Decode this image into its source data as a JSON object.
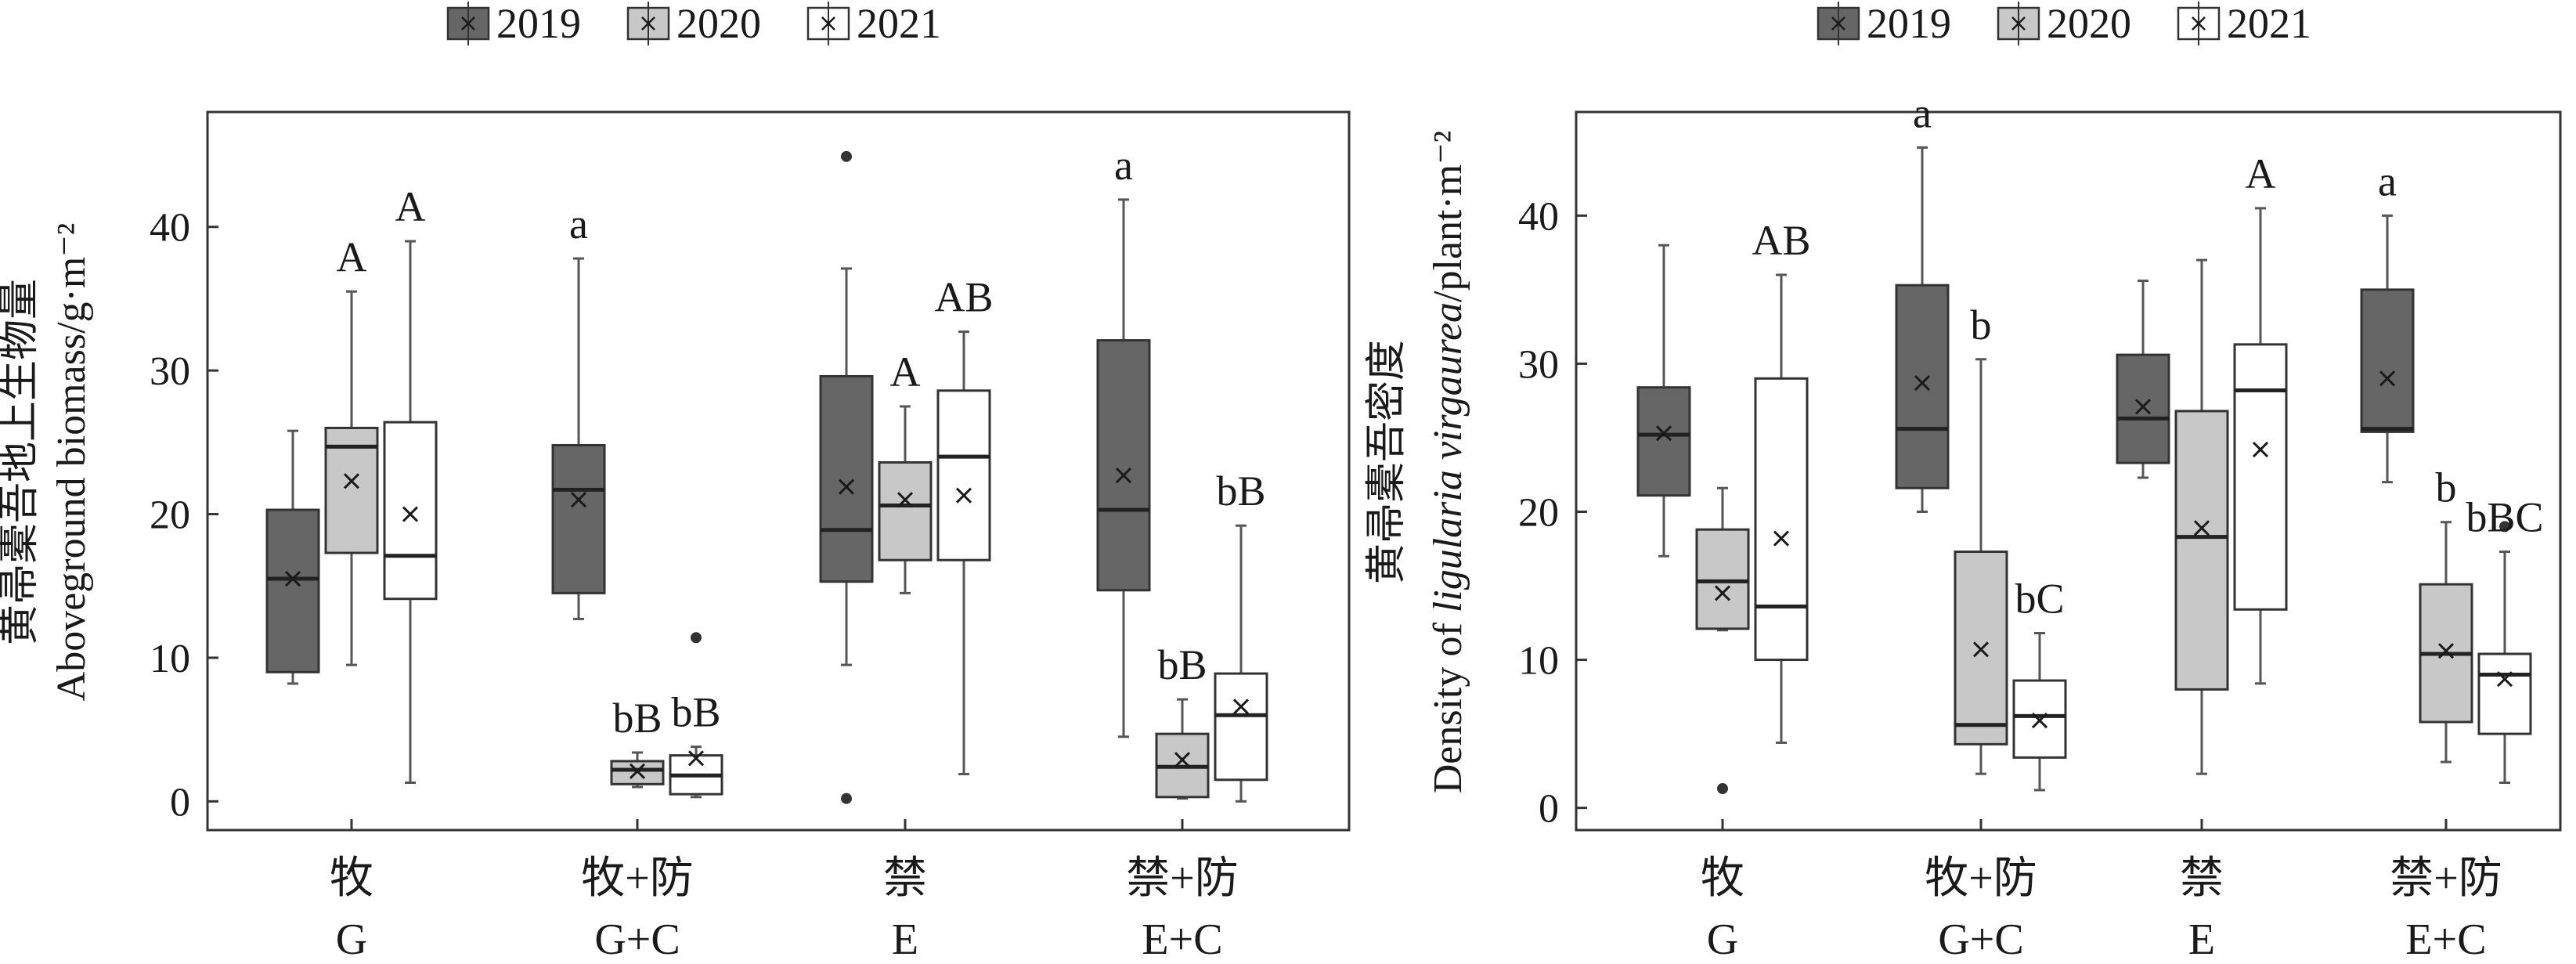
{
  "chart_data": [
    {
      "type": "box",
      "ylabel_zh": "黄帚橐吾地上生物量",
      "ylabel_en": "Aboveground biomass/g·m⁻²",
      "ylim": [
        -2,
        48
      ],
      "yticks": [
        0,
        10,
        20,
        30,
        40
      ],
      "categories": [
        {
          "zh": "牧",
          "en": "G"
        },
        {
          "zh": "牧+防",
          "en": "G+C"
        },
        {
          "zh": "禁",
          "en": "E"
        },
        {
          "zh": "禁+防",
          "en": "E+C"
        }
      ],
      "legend": [
        "2019",
        "2020",
        "2021"
      ],
      "series_colors": [
        "#666666",
        "#c8c8c8",
        "#ffffff"
      ],
      "boxes": [
        {
          "cat": 0,
          "series": 0,
          "wlo": 8.2,
          "q1": 9,
          "med": 15.5,
          "q3": 20.3,
          "whi": 25.8,
          "mean": 15.5,
          "outliers": [],
          "label": ""
        },
        {
          "cat": 0,
          "series": 1,
          "wlo": 9.5,
          "q1": 17.3,
          "med": 24.7,
          "q3": 26,
          "whi": 35.5,
          "mean": 22.3,
          "outliers": [],
          "label": "A"
        },
        {
          "cat": 0,
          "series": 2,
          "wlo": 1.3,
          "q1": 14.1,
          "med": 17.1,
          "q3": 26.4,
          "whi": 39,
          "mean": 20,
          "outliers": [],
          "label": "A"
        },
        {
          "cat": 1,
          "series": 0,
          "wlo": 12.7,
          "q1": 14.5,
          "med": 21.7,
          "q3": 24.8,
          "whi": 37.8,
          "mean": 21,
          "outliers": [],
          "label": "a"
        },
        {
          "cat": 1,
          "series": 1,
          "wlo": 1,
          "q1": 1.2,
          "med": 2.2,
          "q3": 2.8,
          "whi": 3.4,
          "mean": 2.1,
          "outliers": [],
          "label": "bB"
        },
        {
          "cat": 1,
          "series": 2,
          "wlo": 0.3,
          "q1": 0.5,
          "med": 1.8,
          "q3": 3.2,
          "whi": 3.8,
          "mean": 3,
          "outliers": [
            11.4
          ],
          "label": "bB"
        },
        {
          "cat": 2,
          "series": 0,
          "wlo": 9.5,
          "q1": 15.3,
          "med": 18.9,
          "q3": 29.6,
          "whi": 37.1,
          "mean": 21.9,
          "outliers": [
            44.9,
            0.2
          ],
          "label": ""
        },
        {
          "cat": 2,
          "series": 1,
          "wlo": 14.5,
          "q1": 16.8,
          "med": 20.6,
          "q3": 23.6,
          "whi": 27.5,
          "mean": 21,
          "outliers": [],
          "label": "A"
        },
        {
          "cat": 2,
          "series": 2,
          "wlo": 1.9,
          "q1": 16.8,
          "med": 24,
          "q3": 28.6,
          "whi": 32.7,
          "mean": 21.3,
          "outliers": [],
          "label": "AB"
        },
        {
          "cat": 3,
          "series": 0,
          "wlo": 4.5,
          "q1": 14.7,
          "med": 20.3,
          "q3": 32.1,
          "whi": 41.9,
          "mean": 22.7,
          "outliers": [],
          "label": "a"
        },
        {
          "cat": 3,
          "series": 1,
          "wlo": 0.2,
          "q1": 0.3,
          "med": 2.4,
          "q3": 4.7,
          "whi": 7.1,
          "mean": 2.9,
          "outliers": [],
          "label": "bB"
        },
        {
          "cat": 3,
          "series": 2,
          "wlo": 0,
          "q1": 1.5,
          "med": 6,
          "q3": 8.9,
          "whi": 19.2,
          "mean": 6.6,
          "outliers": [],
          "label": "bB"
        }
      ]
    },
    {
      "type": "box",
      "ylabel_zh": "黄帚橐吾密度",
      "ylabel_en_prefix": "Density of ",
      "ylabel_en_italic": "ligularia virgaurea",
      "ylabel_en_suffix": "/plant·m⁻²",
      "ylim": [
        -1.5,
        47
      ],
      "yticks": [
        0,
        10,
        20,
        30,
        40
      ],
      "categories": [
        {
          "zh": "牧",
          "en": "G"
        },
        {
          "zh": "牧+防",
          "en": "G+C"
        },
        {
          "zh": "禁",
          "en": "E"
        },
        {
          "zh": "禁+防",
          "en": "E+C"
        }
      ],
      "legend": [
        "2019",
        "2020",
        "2021"
      ],
      "series_colors": [
        "#666666",
        "#c8c8c8",
        "#ffffff"
      ],
      "boxes": [
        {
          "cat": 0,
          "series": 0,
          "wlo": 17,
          "q1": 21.1,
          "med": 25.2,
          "q3": 28.4,
          "whi": 38,
          "mean": 25.3,
          "outliers": [],
          "label": ""
        },
        {
          "cat": 0,
          "series": 1,
          "wlo": 12,
          "q1": 12.1,
          "med": 15.3,
          "q3": 18.8,
          "whi": 21.6,
          "mean": 14.5,
          "outliers": [
            1.3
          ],
          "label": ""
        },
        {
          "cat": 0,
          "series": 2,
          "wlo": 4.4,
          "q1": 10,
          "med": 13.6,
          "q3": 29,
          "whi": 36,
          "mean": 18.2,
          "outliers": [],
          "label": "AB"
        },
        {
          "cat": 1,
          "series": 0,
          "wlo": 20,
          "q1": 21.6,
          "med": 25.6,
          "q3": 35.3,
          "whi": 44.6,
          "mean": 28.7,
          "outliers": [],
          "label": "a"
        },
        {
          "cat": 1,
          "series": 1,
          "wlo": 2.3,
          "q1": 4.3,
          "med": 5.6,
          "q3": 17.3,
          "whi": 30.3,
          "mean": 10.7,
          "outliers": [],
          "label": "b"
        },
        {
          "cat": 1,
          "series": 2,
          "wlo": 1.2,
          "q1": 3.4,
          "med": 6.2,
          "q3": 8.6,
          "whi": 11.8,
          "mean": 5.9,
          "outliers": [],
          "label": "bC"
        },
        {
          "cat": 2,
          "series": 0,
          "wlo": 22.3,
          "q1": 23.3,
          "med": 26.3,
          "q3": 30.6,
          "whi": 35.6,
          "mean": 27.1,
          "outliers": [],
          "label": ""
        },
        {
          "cat": 2,
          "series": 1,
          "wlo": 2.3,
          "q1": 8,
          "med": 18.3,
          "q3": 26.8,
          "whi": 37,
          "mean": 18.9,
          "outliers": [],
          "label": ""
        },
        {
          "cat": 2,
          "series": 2,
          "wlo": 8.4,
          "q1": 13.4,
          "med": 28.2,
          "q3": 31.3,
          "whi": 40.5,
          "mean": 24.2,
          "outliers": [],
          "label": "A"
        },
        {
          "cat": 3,
          "series": 0,
          "wlo": 22,
          "q1": 25.4,
          "med": 25.6,
          "q3": 35,
          "whi": 40,
          "mean": 29,
          "outliers": [],
          "label": "a"
        },
        {
          "cat": 3,
          "series": 1,
          "wlo": 3.1,
          "q1": 5.8,
          "med": 10.4,
          "q3": 15.1,
          "whi": 19.3,
          "mean": 10.6,
          "outliers": [],
          "label": "b"
        },
        {
          "cat": 3,
          "series": 2,
          "wlo": 1.7,
          "q1": 5,
          "med": 9,
          "q3": 10.4,
          "whi": 17.3,
          "mean": 8.7,
          "outliers": [
            19
          ],
          "label": "bBC"
        }
      ]
    }
  ]
}
